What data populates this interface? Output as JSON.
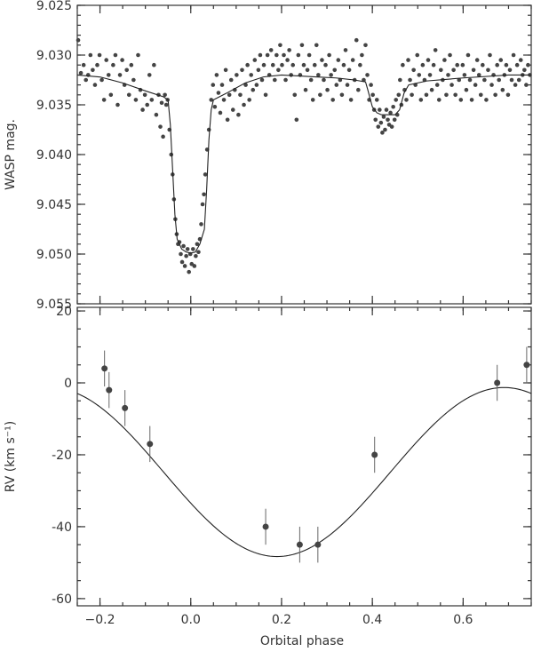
{
  "chart_data": [
    {
      "type": "scatter",
      "id": "photometry",
      "title": "",
      "xlabel": "",
      "ylabel": "WASP mag.",
      "xlim": [
        -0.25,
        0.75
      ],
      "ylim": [
        9.055,
        9.025
      ],
      "y_inverted": true,
      "yticks": [
        "9.025",
        "9.030",
        "9.035",
        "9.040",
        "9.045",
        "9.050",
        "9.055"
      ],
      "xticks_show_labels": false,
      "model_label": "",
      "model": {
        "x": [
          -0.25,
          -0.2,
          -0.15,
          -0.1,
          -0.06,
          -0.05,
          -0.045,
          -0.04,
          -0.035,
          -0.03,
          -0.02,
          -0.01,
          0.0,
          0.01,
          0.02,
          0.03,
          0.035,
          0.04,
          0.045,
          0.05,
          0.08,
          0.12,
          0.16,
          0.2,
          0.24,
          0.28,
          0.32,
          0.36,
          0.385,
          0.39,
          0.4,
          0.41,
          0.42,
          0.45,
          0.46,
          0.47,
          0.48,
          0.52,
          0.6,
          0.7,
          0.75
        ],
        "y": [
          9.032,
          9.0322,
          9.0328,
          9.0336,
          9.0342,
          9.0345,
          9.037,
          9.0415,
          9.046,
          9.0485,
          9.0495,
          9.0498,
          9.0499,
          9.0498,
          9.049,
          9.0475,
          9.0435,
          9.0385,
          9.0355,
          9.0345,
          9.0338,
          9.0328,
          9.0322,
          9.032,
          9.0321,
          9.0322,
          9.0323,
          9.0325,
          9.0327,
          9.0335,
          9.0352,
          9.0358,
          9.036,
          9.036,
          9.0355,
          9.0338,
          9.033,
          9.0326,
          9.0323,
          9.032,
          9.032
        ]
      },
      "points": [
        [
          -0.248,
          9.0285
        ],
        [
          -0.242,
          9.0318
        ],
        [
          -0.236,
          9.031
        ],
        [
          -0.231,
          9.0325
        ],
        [
          -0.226,
          9.032
        ],
        [
          -0.221,
          9.03
        ],
        [
          -0.216,
          9.0315
        ],
        [
          -0.211,
          9.033
        ],
        [
          -0.206,
          9.031
        ],
        [
          -0.201,
          9.03
        ],
        [
          -0.196,
          9.0325
        ],
        [
          -0.191,
          9.0345
        ],
        [
          -0.186,
          9.0305
        ],
        [
          -0.181,
          9.032
        ],
        [
          -0.176,
          9.034
        ],
        [
          -0.171,
          9.031
        ],
        [
          -0.166,
          9.03
        ],
        [
          -0.161,
          9.035
        ],
        [
          -0.156,
          9.032
        ],
        [
          -0.151,
          9.0305
        ],
        [
          -0.146,
          9.033
        ],
        [
          -0.141,
          9.0315
        ],
        [
          -0.136,
          9.034
        ],
        [
          -0.131,
          9.031
        ],
        [
          -0.126,
          9.0325
        ],
        [
          -0.121,
          9.0345
        ],
        [
          -0.116,
          9.03
        ],
        [
          -0.111,
          9.0335
        ],
        [
          -0.106,
          9.0355
        ],
        [
          -0.101,
          9.034
        ],
        [
          -0.096,
          9.035
        ],
        [
          -0.091,
          9.032
        ],
        [
          -0.086,
          9.0345
        ],
        [
          -0.081,
          9.031
        ],
        [
          -0.076,
          9.036
        ],
        [
          -0.071,
          9.034
        ],
        [
          -0.067,
          9.0372
        ],
        [
          -0.064,
          9.0348
        ],
        [
          -0.061,
          9.0382
        ],
        [
          -0.057,
          9.034
        ],
        [
          -0.054,
          9.035
        ],
        [
          -0.051,
          9.0345
        ],
        [
          -0.047,
          9.0375
        ],
        [
          -0.043,
          9.04
        ],
        [
          -0.04,
          9.042
        ],
        [
          -0.037,
          9.0445
        ],
        [
          -0.034,
          9.0465
        ],
        [
          -0.031,
          9.048
        ],
        [
          -0.028,
          9.049
        ],
        [
          -0.025,
          9.0488
        ],
        [
          -0.022,
          9.05
        ],
        [
          -0.019,
          9.0508
        ],
        [
          -0.016,
          9.0492
        ],
        [
          -0.013,
          9.0512
        ],
        [
          -0.01,
          9.0502
        ],
        [
          -0.007,
          9.0495
        ],
        [
          -0.004,
          9.0518
        ],
        [
          -0.001,
          9.05
        ],
        [
          0.002,
          9.051
        ],
        [
          0.005,
          9.0495
        ],
        [
          0.008,
          9.0512
        ],
        [
          0.011,
          9.0502
        ],
        [
          0.014,
          9.049
        ],
        [
          0.017,
          9.0498
        ],
        [
          0.02,
          9.0485
        ],
        [
          0.023,
          9.047
        ],
        [
          0.026,
          9.045
        ],
        [
          0.029,
          9.044
        ],
        [
          0.032,
          9.042
        ],
        [
          0.036,
          9.0395
        ],
        [
          0.04,
          9.0375
        ],
        [
          0.045,
          9.0345
        ],
        [
          0.049,
          9.033
        ],
        [
          0.053,
          9.0352
        ],
        [
          0.057,
          9.032
        ],
        [
          0.061,
          9.0338
        ],
        [
          0.065,
          9.0358
        ],
        [
          0.069,
          9.033
        ],
        [
          0.073,
          9.0345
        ],
        [
          0.077,
          9.0315
        ],
        [
          0.081,
          9.0365
        ],
        [
          0.085,
          9.034
        ],
        [
          0.089,
          9.0325
        ],
        [
          0.093,
          9.0355
        ],
        [
          0.097,
          9.0335
        ],
        [
          0.101,
          9.032
        ],
        [
          0.105,
          9.036
        ],
        [
          0.109,
          9.034
        ],
        [
          0.113,
          9.0315
        ],
        [
          0.117,
          9.035
        ],
        [
          0.121,
          9.033
        ],
        [
          0.125,
          9.031
        ],
        [
          0.129,
          9.0345
        ],
        [
          0.133,
          9.032
        ],
        [
          0.137,
          9.0335
        ],
        [
          0.141,
          9.0305
        ],
        [
          0.145,
          9.033
        ],
        [
          0.149,
          9.0315
        ],
        [
          0.153,
          9.03
        ],
        [
          0.157,
          9.0325
        ],
        [
          0.161,
          9.031
        ],
        [
          0.165,
          9.034
        ],
        [
          0.169,
          9.03
        ],
        [
          0.173,
          9.032
        ],
        [
          0.177,
          9.0295
        ],
        [
          0.181,
          9.031
        ],
        [
          0.185,
          9.0325
        ],
        [
          0.189,
          9.03
        ],
        [
          0.193,
          9.0315
        ],
        [
          0.197,
          9.029
        ],
        [
          0.201,
          9.031
        ],
        [
          0.205,
          9.03
        ],
        [
          0.209,
          9.0325
        ],
        [
          0.213,
          9.0305
        ],
        [
          0.217,
          9.0295
        ],
        [
          0.221,
          9.032
        ],
        [
          0.225,
          9.031
        ],
        [
          0.229,
          9.034
        ],
        [
          0.233,
          9.0365
        ],
        [
          0.237,
          9.03
        ],
        [
          0.241,
          9.032
        ],
        [
          0.245,
          9.029
        ],
        [
          0.249,
          9.031
        ],
        [
          0.253,
          9.0335
        ],
        [
          0.257,
          9.0315
        ],
        [
          0.261,
          9.03
        ],
        [
          0.265,
          9.0325
        ],
        [
          0.269,
          9.0345
        ],
        [
          0.273,
          9.031
        ],
        [
          0.277,
          9.029
        ],
        [
          0.281,
          9.032
        ],
        [
          0.285,
          9.034
        ],
        [
          0.289,
          9.0305
        ],
        [
          0.293,
          9.0325
        ],
        [
          0.297,
          9.031
        ],
        [
          0.301,
          9.0335
        ],
        [
          0.305,
          9.03
        ],
        [
          0.309,
          9.032
        ],
        [
          0.313,
          9.0345
        ],
        [
          0.317,
          9.0315
        ],
        [
          0.321,
          9.033
        ],
        [
          0.325,
          9.0305
        ],
        [
          0.329,
          9.0325
        ],
        [
          0.333,
          9.034
        ],
        [
          0.337,
          9.031
        ],
        [
          0.341,
          9.0295
        ],
        [
          0.345,
          9.033
        ],
        [
          0.349,
          9.0315
        ],
        [
          0.353,
          9.0345
        ],
        [
          0.357,
          9.0305
        ],
        [
          0.361,
          9.0325
        ],
        [
          0.365,
          9.0285
        ],
        [
          0.369,
          9.0335
        ],
        [
          0.373,
          9.031
        ],
        [
          0.377,
          9.03
        ],
        [
          0.381,
          9.0325
        ],
        [
          0.385,
          9.029
        ],
        [
          0.389,
          9.032
        ],
        [
          0.393,
          9.0345
        ],
        [
          0.397,
          9.033
        ],
        [
          0.401,
          9.034
        ],
        [
          0.404,
          9.0355
        ],
        [
          0.407,
          9.0365
        ],
        [
          0.41,
          9.0345
        ],
        [
          0.413,
          9.0372
        ],
        [
          0.416,
          9.0355
        ],
        [
          0.419,
          9.0368
        ],
        [
          0.422,
          9.0378
        ],
        [
          0.425,
          9.0362
        ],
        [
          0.428,
          9.0375
        ],
        [
          0.431,
          9.0355
        ],
        [
          0.434,
          9.0365
        ],
        [
          0.437,
          9.037
        ],
        [
          0.44,
          9.0358
        ],
        [
          0.443,
          9.0372
        ],
        [
          0.446,
          9.0352
        ],
        [
          0.449,
          9.0365
        ],
        [
          0.452,
          9.0345
        ],
        [
          0.455,
          9.036
        ],
        [
          0.458,
          9.034
        ],
        [
          0.461,
          9.0325
        ],
        [
          0.464,
          9.035
        ],
        [
          0.467,
          9.031
        ],
        [
          0.471,
          9.0335
        ],
        [
          0.475,
          9.0345
        ],
        [
          0.479,
          9.0305
        ],
        [
          0.483,
          9.0325
        ],
        [
          0.487,
          9.034
        ],
        [
          0.491,
          9.0315
        ],
        [
          0.495,
          9.033
        ],
        [
          0.499,
          9.03
        ],
        [
          0.503,
          9.032
        ],
        [
          0.507,
          9.0345
        ],
        [
          0.511,
          9.031
        ],
        [
          0.515,
          9.0325
        ],
        [
          0.519,
          9.034
        ],
        [
          0.523,
          9.0305
        ],
        [
          0.527,
          9.032
        ],
        [
          0.531,
          9.0335
        ],
        [
          0.535,
          9.031
        ],
        [
          0.539,
          9.0295
        ],
        [
          0.543,
          9.033
        ],
        [
          0.547,
          9.0345
        ],
        [
          0.551,
          9.0315
        ],
        [
          0.555,
          9.0325
        ],
        [
          0.559,
          9.0305
        ],
        [
          0.563,
          9.034
        ],
        [
          0.567,
          9.032
        ],
        [
          0.571,
          9.03
        ],
        [
          0.575,
          9.033
        ],
        [
          0.579,
          9.0315
        ],
        [
          0.583,
          9.034
        ],
        [
          0.587,
          9.031
        ],
        [
          0.591,
          9.0325
        ],
        [
          0.595,
          9.0345
        ],
        [
          0.599,
          9.031
        ],
        [
          0.603,
          9.032
        ],
        [
          0.607,
          9.0335
        ],
        [
          0.611,
          9.03
        ],
        [
          0.615,
          9.0325
        ],
        [
          0.619,
          9.0345
        ],
        [
          0.623,
          9.0315
        ],
        [
          0.627,
          9.033
        ],
        [
          0.631,
          9.0305
        ],
        [
          0.635,
          9.032
        ],
        [
          0.639,
          9.034
        ],
        [
          0.643,
          9.031
        ],
        [
          0.647,
          9.0325
        ],
        [
          0.651,
          9.0345
        ],
        [
          0.655,
          9.0315
        ],
        [
          0.659,
          9.03
        ],
        [
          0.663,
          9.033
        ],
        [
          0.667,
          9.032
        ],
        [
          0.671,
          9.034
        ],
        [
          0.675,
          9.031
        ],
        [
          0.679,
          9.0325
        ],
        [
          0.683,
          9.0305
        ],
        [
          0.687,
          9.0335
        ],
        [
          0.691,
          9.032
        ],
        [
          0.695,
          9.031
        ],
        [
          0.699,
          9.034
        ],
        [
          0.703,
          9.0315
        ],
        [
          0.707,
          9.0325
        ],
        [
          0.711,
          9.03
        ],
        [
          0.715,
          9.033
        ],
        [
          0.719,
          9.031
        ],
        [
          0.723,
          9.0325
        ],
        [
          0.727,
          9.0305
        ],
        [
          0.731,
          9.032
        ],
        [
          0.735,
          9.0315
        ],
        [
          0.739,
          9.033
        ],
        [
          0.743,
          9.031
        ],
        [
          0.747,
          9.032
        ]
      ]
    },
    {
      "type": "scatter",
      "id": "radial-velocity",
      "title": "",
      "xlabel": "Orbital phase",
      "ylabel": "RV (km s⁻¹)",
      "xlim": [
        -0.25,
        0.75
      ],
      "ylim": [
        -62,
        21
      ],
      "yticks": [
        "-60",
        "-40",
        "-20",
        "0",
        "20"
      ],
      "xticks": [
        "−0.2",
        "0.0",
        "0.2",
        "0.4",
        "0.6"
      ],
      "model": {
        "K": 23.5,
        "gamma": -24.8,
        "min_phase": 0.19
      },
      "points": [
        {
          "x": -0.19,
          "y": 4,
          "err": 5
        },
        {
          "x": -0.18,
          "y": -2,
          "err": 5
        },
        {
          "x": -0.145,
          "y": -7,
          "err": 5
        },
        {
          "x": -0.09,
          "y": -17,
          "err": 5
        },
        {
          "x": 0.165,
          "y": -40,
          "err": 5
        },
        {
          "x": 0.24,
          "y": -45,
          "err": 5
        },
        {
          "x": 0.28,
          "y": -45,
          "err": 5
        },
        {
          "x": 0.405,
          "y": -20,
          "err": 5
        },
        {
          "x": 0.675,
          "y": 0,
          "err": 5
        },
        {
          "x": 0.74,
          "y": 5,
          "err": 5
        }
      ]
    }
  ]
}
